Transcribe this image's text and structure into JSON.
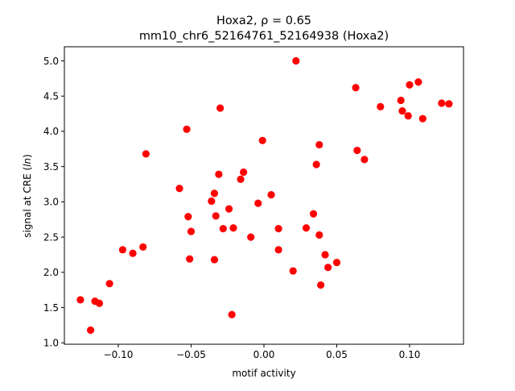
{
  "chart_data": {
    "type": "scatter",
    "title_line1": "Hoxa2, ρ = 0.65",
    "title_line2": "mm10_chr6_52164761_52164938 (Hoxa2)",
    "xlabel": "motif activity",
    "ylabel": "signal at CRE (ln)",
    "xlim": [
      -0.137,
      0.137
    ],
    "ylim": [
      0.98,
      5.2
    ],
    "xticks": [
      -0.1,
      -0.05,
      0.0,
      0.05,
      0.1
    ],
    "xtick_labels": [
      "−0.10",
      "−0.05",
      "0.00",
      "0.05",
      "0.10"
    ],
    "yticks": [
      1.0,
      1.5,
      2.0,
      2.5,
      3.0,
      3.5,
      4.0,
      4.5,
      5.0
    ],
    "ytick_labels": [
      "1.0",
      "1.5",
      "2.0",
      "2.5",
      "3.0",
      "3.5",
      "4.0",
      "4.5",
      "5.0"
    ],
    "grid": false,
    "marker_color": "#ff0000",
    "points": [
      {
        "x": -0.126,
        "y": 1.61
      },
      {
        "x": -0.119,
        "y": 1.18
      },
      {
        "x": -0.116,
        "y": 1.59
      },
      {
        "x": -0.113,
        "y": 1.56
      },
      {
        "x": -0.106,
        "y": 1.84
      },
      {
        "x": -0.097,
        "y": 2.32
      },
      {
        "x": -0.09,
        "y": 2.27
      },
      {
        "x": -0.083,
        "y": 2.36
      },
      {
        "x": -0.081,
        "y": 3.68
      },
      {
        "x": -0.058,
        "y": 3.19
      },
      {
        "x": -0.053,
        "y": 4.03
      },
      {
        "x": -0.052,
        "y": 2.79
      },
      {
        "x": -0.051,
        "y": 2.19
      },
      {
        "x": -0.05,
        "y": 2.58
      },
      {
        "x": -0.036,
        "y": 3.01
      },
      {
        "x": -0.034,
        "y": 3.12
      },
      {
        "x": -0.034,
        "y": 2.18
      },
      {
        "x": -0.033,
        "y": 2.8
      },
      {
        "x": -0.031,
        "y": 3.39
      },
      {
        "x": -0.03,
        "y": 4.33
      },
      {
        "x": -0.028,
        "y": 2.62
      },
      {
        "x": -0.024,
        "y": 2.9
      },
      {
        "x": -0.022,
        "y": 1.4
      },
      {
        "x": -0.021,
        "y": 2.63
      },
      {
        "x": -0.016,
        "y": 3.32
      },
      {
        "x": -0.014,
        "y": 3.42
      },
      {
        "x": -0.009,
        "y": 2.5
      },
      {
        "x": -0.004,
        "y": 2.98
      },
      {
        "x": -0.001,
        "y": 3.87
      },
      {
        "x": 0.005,
        "y": 3.1
      },
      {
        "x": 0.01,
        "y": 2.62
      },
      {
        "x": 0.01,
        "y": 2.32
      },
      {
        "x": 0.02,
        "y": 2.02
      },
      {
        "x": 0.022,
        "y": 5.0
      },
      {
        "x": 0.029,
        "y": 2.63
      },
      {
        "x": 0.034,
        "y": 2.83
      },
      {
        "x": 0.036,
        "y": 3.53
      },
      {
        "x": 0.038,
        "y": 2.53
      },
      {
        "x": 0.038,
        "y": 3.81
      },
      {
        "x": 0.039,
        "y": 1.82
      },
      {
        "x": 0.042,
        "y": 2.25
      },
      {
        "x": 0.044,
        "y": 2.07
      },
      {
        "x": 0.05,
        "y": 2.14
      },
      {
        "x": 0.063,
        "y": 4.62
      },
      {
        "x": 0.064,
        "y": 3.73
      },
      {
        "x": 0.069,
        "y": 3.6
      },
      {
        "x": 0.08,
        "y": 4.35
      },
      {
        "x": 0.094,
        "y": 4.44
      },
      {
        "x": 0.095,
        "y": 4.29
      },
      {
        "x": 0.099,
        "y": 4.22
      },
      {
        "x": 0.1,
        "y": 4.66
      },
      {
        "x": 0.106,
        "y": 4.7
      },
      {
        "x": 0.109,
        "y": 4.18
      },
      {
        "x": 0.122,
        "y": 4.4
      },
      {
        "x": 0.127,
        "y": 4.39
      }
    ]
  }
}
